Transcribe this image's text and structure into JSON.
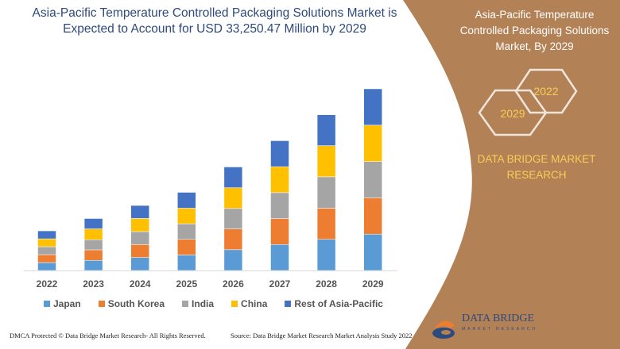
{
  "title": "Asia-Pacific Temperature Controlled Packaging Solutions Market is Expected to Account for USD 33,250.47 Million by 2029",
  "side_panel": {
    "title": "Asia-Pacific Temperature Controlled Packaging Solutions Market, By 2029",
    "hex_badges": [
      "2029",
      "2022"
    ],
    "brand": "DATA BRIDGE MARKET RESEARCH",
    "logo_text": "DATA BRIDGE",
    "logo_sub": "MARKET RESEARCH",
    "color": "#b38156"
  },
  "footer": {
    "left": "DMCA Protected © Data Bridge Market Research- All Rights Reserved.",
    "right": "Source: Data Bridge Market Research Market Analysis Study 2022"
  },
  "chart_data": {
    "type": "bar",
    "stacked": true,
    "title": "Asia-Pacific Temperature Controlled Packaging Solutions Market is Expected to Account for USD 33,250.47 Million by 2029",
    "xlabel": "",
    "ylabel": "",
    "categories": [
      "2022",
      "2023",
      "2024",
      "2025",
      "2026",
      "2027",
      "2028",
      "2029"
    ],
    "ylim": [
      0,
      33250.47
    ],
    "grid": false,
    "legend_position": "bottom",
    "series": [
      {
        "name": "Japan",
        "color": "#5b9bd5",
        "values": [
          1450,
          1850,
          2370,
          2850,
          3800,
          4750,
          5700,
          6650
        ]
      },
      {
        "name": "South Korea",
        "color": "#ed7d31",
        "values": [
          1450,
          1930,
          2370,
          2850,
          3800,
          4750,
          5700,
          6650
        ]
      },
      {
        "name": "India",
        "color": "#a5a5a5",
        "values": [
          1450,
          1850,
          2370,
          2850,
          3750,
          4750,
          5750,
          6650
        ]
      },
      {
        "name": "China",
        "color": "#ffc000",
        "values": [
          1450,
          1990,
          2420,
          2850,
          3800,
          4750,
          5700,
          6650
        ]
      },
      {
        "name": "Rest of Asia-Pacific",
        "color": "#4472c4",
        "values": [
          1450,
          1890,
          2370,
          2900,
          3800,
          4750,
          5650,
          6650
        ]
      }
    ]
  }
}
